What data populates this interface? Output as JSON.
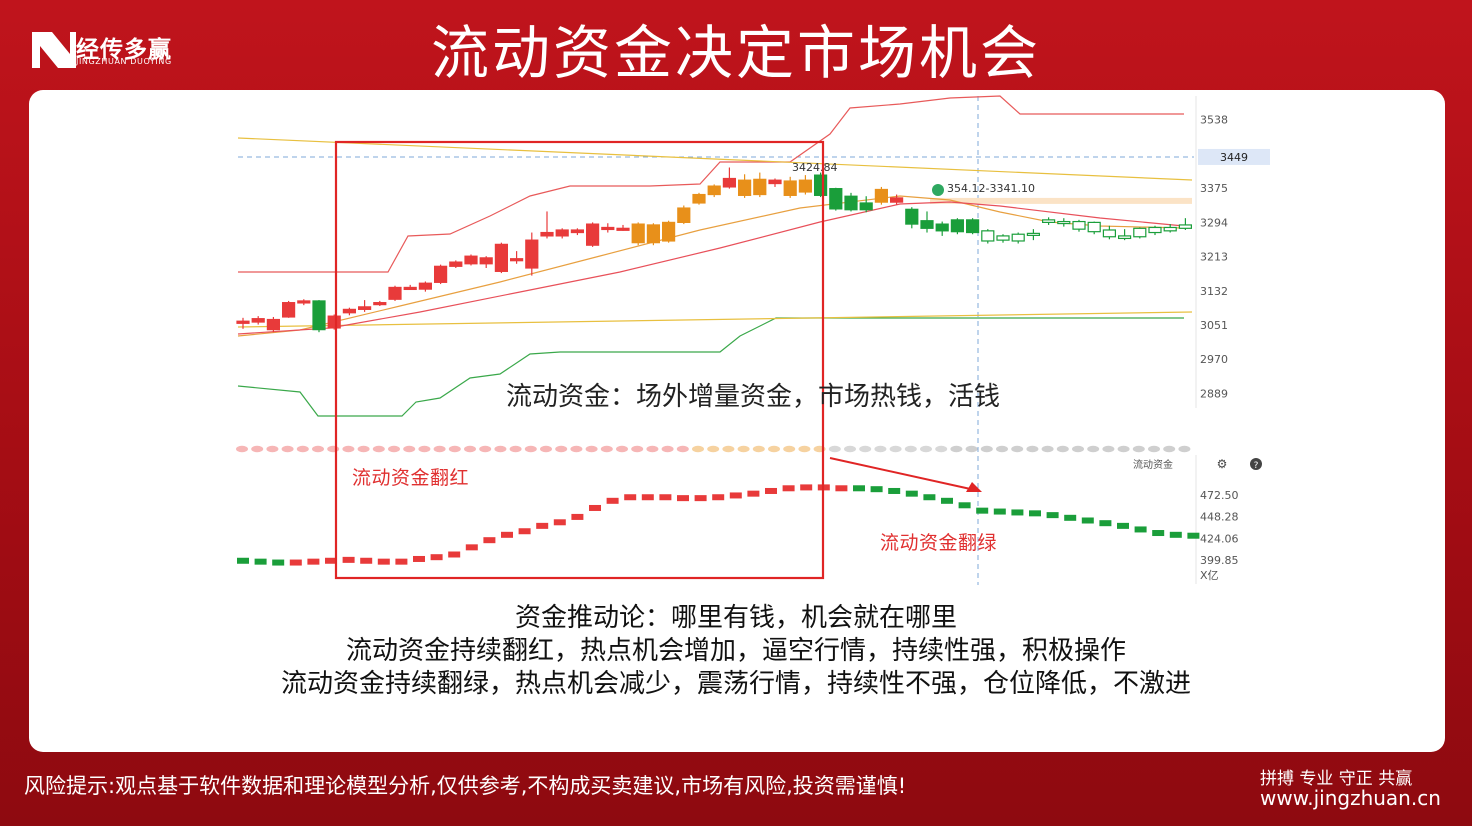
{
  "header": {
    "logo_text": "经传多赢",
    "logo_sub": "JINGZHUAN DUOYING",
    "title": "流动资金决定市场机会"
  },
  "chart_data": [
    {
      "type": "candlestick",
      "y_ticks": [
        "3538",
        "3449",
        "3375",
        "3294",
        "3213",
        "3132",
        "3051",
        "2970",
        "2889"
      ],
      "current_price_label": "3449",
      "high_label": "3424.84",
      "range_label": "354.12-3341.10",
      "annotation": "流动资金：场外增量资金，市场热钱，活钱",
      "candles": [
        {
          "o": 3055,
          "c": 3060,
          "h": 3068,
          "l": 3042,
          "up": true
        },
        {
          "o": 3058,
          "c": 3066,
          "h": 3072,
          "l": 3052,
          "up": true
        },
        {
          "o": 3040,
          "c": 3064,
          "h": 3070,
          "l": 3034,
          "up": true
        },
        {
          "o": 3070,
          "c": 3104,
          "h": 3108,
          "l": 3068,
          "up": true
        },
        {
          "o": 3106,
          "c": 3108,
          "h": 3112,
          "l": 3098,
          "up": true
        },
        {
          "o": 3108,
          "c": 3040,
          "h": 3110,
          "l": 3034,
          "up": false,
          "drop": true
        },
        {
          "o": 3044,
          "c": 3072,
          "h": 3076,
          "l": 3040,
          "up": true
        },
        {
          "o": 3080,
          "c": 3088,
          "h": 3092,
          "l": 3074,
          "up": true
        },
        {
          "o": 3088,
          "c": 3094,
          "h": 3110,
          "l": 3082,
          "up": true
        },
        {
          "o": 3102,
          "c": 3104,
          "h": 3108,
          "l": 3096,
          "up": true
        },
        {
          "o": 3112,
          "c": 3140,
          "h": 3144,
          "l": 3108,
          "up": true
        },
        {
          "o": 3138,
          "c": 3140,
          "h": 3146,
          "l": 3134,
          "up": true
        },
        {
          "o": 3136,
          "c": 3150,
          "h": 3154,
          "l": 3130,
          "up": true
        },
        {
          "o": 3152,
          "c": 3190,
          "h": 3194,
          "l": 3148,
          "up": true
        },
        {
          "o": 3190,
          "c": 3200,
          "h": 3204,
          "l": 3186,
          "up": true
        },
        {
          "o": 3196,
          "c": 3214,
          "h": 3218,
          "l": 3192,
          "up": true
        },
        {
          "o": 3196,
          "c": 3210,
          "h": 3214,
          "l": 3186,
          "up": true
        },
        {
          "o": 3178,
          "c": 3242,
          "h": 3246,
          "l": 3174,
          "up": true
        },
        {
          "o": 3206,
          "c": 3208,
          "h": 3226,
          "l": 3196,
          "up": true
        },
        {
          "o": 3186,
          "c": 3252,
          "h": 3270,
          "l": 3168,
          "up": true
        },
        {
          "o": 3262,
          "c": 3270,
          "h": 3320,
          "l": 3256,
          "up": true
        },
        {
          "o": 3262,
          "c": 3276,
          "h": 3280,
          "l": 3256,
          "up": true
        },
        {
          "o": 3270,
          "c": 3276,
          "h": 3280,
          "l": 3264,
          "up": true
        },
        {
          "o": 3240,
          "c": 3290,
          "h": 3294,
          "l": 3236,
          "up": true
        },
        {
          "o": 3280,
          "c": 3282,
          "h": 3292,
          "l": 3270,
          "up": true
        },
        {
          "o": 3279,
          "c": 3280,
          "h": 3288,
          "l": 3274,
          "up": true
        },
        {
          "o": 3246,
          "c": 3290,
          "h": 3294,
          "l": 3240,
          "up": true,
          "orange": true
        },
        {
          "o": 3246,
          "c": 3288,
          "h": 3292,
          "l": 3240,
          "up": true,
          "orange": true
        },
        {
          "o": 3250,
          "c": 3294,
          "h": 3298,
          "l": 3246,
          "up": true,
          "orange": true
        },
        {
          "o": 3294,
          "c": 3328,
          "h": 3334,
          "l": 3290,
          "up": true,
          "orange": true
        },
        {
          "o": 3340,
          "c": 3360,
          "h": 3364,
          "l": 3336,
          "up": true,
          "orange": true
        },
        {
          "o": 3360,
          "c": 3380,
          "h": 3384,
          "l": 3354,
          "up": true,
          "orange": true
        },
        {
          "o": 3378,
          "c": 3398,
          "h": 3424,
          "l": 3374,
          "up": true
        },
        {
          "o": 3394,
          "c": 3358,
          "h": 3408,
          "l": 3352,
          "up": false,
          "orange": true
        },
        {
          "o": 3396,
          "c": 3360,
          "h": 3412,
          "l": 3354,
          "up": false,
          "orange": true
        },
        {
          "o": 3386,
          "c": 3394,
          "h": 3398,
          "l": 3378,
          "up": true
        },
        {
          "o": 3392,
          "c": 3358,
          "h": 3402,
          "l": 3352,
          "up": false,
          "orange": true
        },
        {
          "o": 3366,
          "c": 3394,
          "h": 3406,
          "l": 3360,
          "up": true,
          "orange": true
        },
        {
          "o": 3406,
          "c": 3358,
          "h": 3412,
          "l": 3354,
          "up": false
        },
        {
          "o": 3374,
          "c": 3326,
          "h": 3376,
          "l": 3322,
          "up": false
        },
        {
          "o": 3356,
          "c": 3324,
          "h": 3364,
          "l": 3320,
          "up": false
        },
        {
          "o": 3340,
          "c": 3324,
          "h": 3356,
          "l": 3318,
          "up": false
        },
        {
          "o": 3372,
          "c": 3342,
          "h": 3378,
          "l": 3336,
          "up": false,
          "orange": true
        },
        {
          "o": 3342,
          "c": 3352,
          "h": 3360,
          "l": 3336,
          "up": true
        },
        {
          "o": 3325,
          "c": 3290,
          "h": 3330,
          "l": 3280,
          "up": false
        },
        {
          "o": 3298,
          "c": 3280,
          "h": 3320,
          "l": 3270,
          "up": false
        },
        {
          "o": 3290,
          "c": 3274,
          "h": 3296,
          "l": 3262,
          "up": false
        },
        {
          "o": 3300,
          "c": 3272,
          "h": 3304,
          "l": 3266,
          "up": false
        },
        {
          "o": 3300,
          "c": 3270,
          "h": 3304,
          "l": 3266,
          "up": false
        },
        {
          "o": 3274,
          "c": 3250,
          "h": 3278,
          "l": 3244,
          "up": false,
          "hollow": true
        },
        {
          "o": 3262,
          "c": 3252,
          "h": 3266,
          "l": 3246,
          "up": false,
          "hollow": true
        },
        {
          "o": 3266,
          "c": 3250,
          "h": 3270,
          "l": 3244,
          "up": false,
          "hollow": true
        },
        {
          "o": 3268,
          "c": 3268,
          "h": 3278,
          "l": 3252,
          "up": false,
          "hollow": true
        },
        {
          "o": 3300,
          "c": 3294,
          "h": 3306,
          "l": 3288,
          "up": false
        },
        {
          "o": 3296,
          "c": 3292,
          "h": 3304,
          "l": 3284,
          "up": false
        },
        {
          "o": 3296,
          "c": 3278,
          "h": 3300,
          "l": 3272,
          "up": false
        },
        {
          "o": 3294,
          "c": 3272,
          "h": 3296,
          "l": 3266,
          "up": false
        },
        {
          "o": 3276,
          "c": 3260,
          "h": 3286,
          "l": 3254,
          "up": false
        },
        {
          "o": 3262,
          "c": 3256,
          "h": 3278,
          "l": 3252,
          "up": false
        },
        {
          "o": 3280,
          "c": 3260,
          "h": 3282,
          "l": 3256,
          "up": false
        },
        {
          "o": 3282,
          "c": 3270,
          "h": 3286,
          "l": 3264,
          "up": false
        },
        {
          "o": 3282,
          "c": 3274,
          "h": 3290,
          "l": 3270,
          "up": false
        },
        {
          "o": 3288,
          "c": 3280,
          "h": 3304,
          "l": 3276,
          "up": false
        }
      ]
    },
    {
      "type": "line",
      "name": "流动资金",
      "y_ticks": [
        "472.50",
        "448.28",
        "424.06",
        "399.85"
      ],
      "unit": "X亿",
      "label_red": "流动资金翻红",
      "label_green": "流动资金翻绿",
      "values": [
        399,
        398,
        397,
        397,
        398,
        399,
        400,
        399,
        398,
        398,
        401,
        403,
        406,
        414,
        422,
        428,
        432,
        438,
        442,
        448,
        458,
        466,
        470,
        470,
        470,
        469,
        469,
        470,
        472,
        474,
        477,
        480,
        481,
        481,
        480,
        480,
        479,
        477,
        474,
        470,
        466,
        461,
        455,
        454,
        453,
        452,
        450,
        447,
        444,
        441,
        438,
        434,
        430,
        428,
        427
      ]
    }
  ],
  "body_text": {
    "line1": "资金推动论：哪里有钱，机会就在哪里",
    "line2": "流动资金持续翻红，热点机会增加，逼空行情，持续性强，积极操作",
    "line3": "流动资金持续翻绿，热点机会减少，震荡行情，持续性不强，仓位降低，不激进"
  },
  "footer": {
    "disclaimer": "风险提示:观点基于软件数据和理论模型分析,仅供参考,不构成买卖建议,市场有风险,投资需谨慎!",
    "slogan": "拼搏 专业 守正 共赢",
    "url": "www.jingzhuan.cn"
  },
  "colors": {
    "up": "#e83a3a",
    "down": "#1a9e3a",
    "orange": "#e8901a",
    "brand": "#b3111a"
  }
}
